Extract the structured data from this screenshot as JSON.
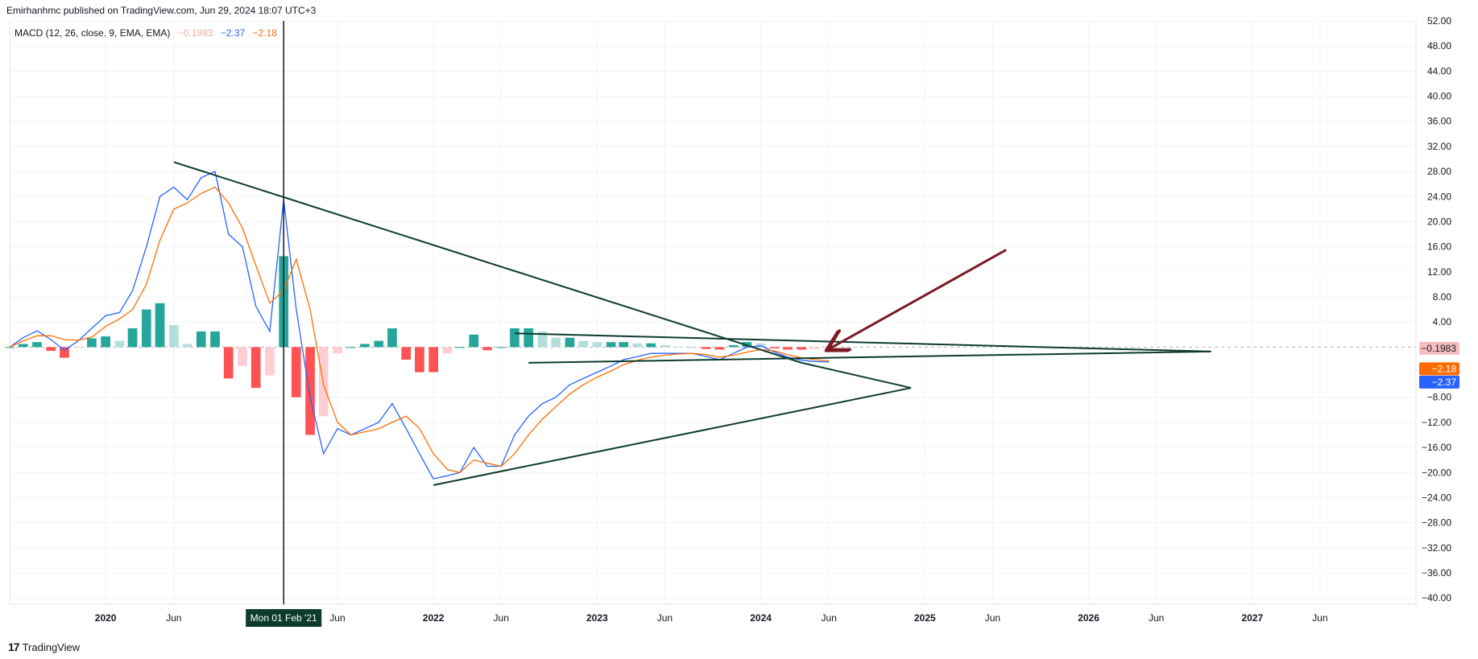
{
  "header": {
    "published": "Emirhanhmc published on TradingView.com, Jun 29, 2024 18:07 UTC+3"
  },
  "legend": {
    "indicator": "MACD (12, 26, close, 9, EMA, EMA)",
    "histogram_value": "−0.1983",
    "macd_value": "−2.37",
    "signal_value": "−2.18"
  },
  "footer": {
    "brand": "TradingView",
    "logo": "17"
  },
  "colors": {
    "macd": "#2962ff",
    "signal": "#ff6d00",
    "hist_pos_strong": "#26a69a",
    "hist_pos_weak": "#b2dfdb",
    "hist_neg_strong": "#ff5252",
    "hist_neg_weak": "#ffcdd2",
    "trendline": "#0d3b2e",
    "arrow": "#7b1a24"
  },
  "chart_data": {
    "type": "line",
    "title": "",
    "xlabel": "",
    "ylabel": "",
    "ylim": [
      -41,
      52
    ],
    "xlim": [
      "2019-06-01",
      "2028-01-01"
    ],
    "grid": true,
    "price_axis_labels": [
      "52.00",
      "48.00",
      "44.00",
      "40.00",
      "36.00",
      "32.00",
      "28.00",
      "24.00",
      "20.00",
      "16.00",
      "12.00",
      "8.00",
      "4.00",
      "−8.00",
      "−12.00",
      "−16.00",
      "−20.00",
      "−24.00",
      "−28.00",
      "−32.00",
      "−36.00",
      "−40.00"
    ],
    "price_axis_values": [
      52,
      48,
      44,
      40,
      36,
      32,
      28,
      24,
      20,
      16,
      12,
      8,
      4,
      -8,
      -12,
      -16,
      -20,
      -24,
      -28,
      -32,
      -36,
      -40
    ],
    "time_axis": [
      {
        "label": "2020",
        "date": "2020-01-01"
      },
      {
        "label": "Jun",
        "date": "2020-06-01"
      },
      {
        "label": "Jun",
        "date": "2021-06-01"
      },
      {
        "label": "2022",
        "date": "2022-01-01"
      },
      {
        "label": "Jun",
        "date": "2022-06-01"
      },
      {
        "label": "2023",
        "date": "2023-01-01"
      },
      {
        "label": "Jun",
        "date": "2023-06-01"
      },
      {
        "label": "2024",
        "date": "2024-01-01"
      },
      {
        "label": "Jun",
        "date": "2024-06-01"
      },
      {
        "label": "2025",
        "date": "2025-01-01"
      },
      {
        "label": "Jun",
        "date": "2025-06-01"
      },
      {
        "label": "2026",
        "date": "2026-01-01"
      },
      {
        "label": "Jun",
        "date": "2026-06-01"
      },
      {
        "label": "2027",
        "date": "2027-01-01"
      },
      {
        "label": "Jun",
        "date": "2027-06-01"
      }
    ],
    "crosshair": {
      "label": "Mon 01 Feb '21",
      "date": "2021-02-01"
    },
    "price_tags": [
      {
        "label": "−0.1983",
        "value": -0.1983,
        "bg": "#f7bec0",
        "fg": "#131722"
      },
      {
        "label": "−2.18",
        "value": -2.18,
        "bg": "#ff6d00",
        "fg": "#ffffff"
      },
      {
        "label": "−2.37",
        "value": -2.37,
        "bg": "#2962ff",
        "fg": "#ffffff"
      }
    ],
    "series": [
      {
        "name": "MACD",
        "color": "#2962ff",
        "points": [
          [
            "2019-06-01",
            0
          ],
          [
            "2019-07-01",
            1.5
          ],
          [
            "2019-08-01",
            2.6
          ],
          [
            "2019-09-01",
            1.2
          ],
          [
            "2019-10-01",
            -0.5
          ],
          [
            "2019-11-01",
            1
          ],
          [
            "2019-12-01",
            3
          ],
          [
            "2020-01-01",
            5
          ],
          [
            "2020-02-01",
            5.5
          ],
          [
            "2020-03-01",
            9
          ],
          [
            "2020-04-01",
            16
          ],
          [
            "2020-05-01",
            24
          ],
          [
            "2020-06-01",
            25.5
          ],
          [
            "2020-07-01",
            23.5
          ],
          [
            "2020-08-01",
            27
          ],
          [
            "2020-09-01",
            28
          ],
          [
            "2020-10-01",
            18
          ],
          [
            "2020-11-01",
            16
          ],
          [
            "2020-12-01",
            6.5
          ],
          [
            "2021-01-01",
            2.5
          ],
          [
            "2021-02-01",
            23.5
          ],
          [
            "2021-03-01",
            6
          ],
          [
            "2021-04-01",
            -8
          ],
          [
            "2021-05-01",
            -17
          ],
          [
            "2021-06-01",
            -13
          ],
          [
            "2021-07-01",
            -14
          ],
          [
            "2021-08-01",
            -13
          ],
          [
            "2021-09-01",
            -12
          ],
          [
            "2021-10-01",
            -9
          ],
          [
            "2021-11-01",
            -13
          ],
          [
            "2021-12-01",
            -17
          ],
          [
            "2022-01-01",
            -21
          ],
          [
            "2022-02-01",
            -20.5
          ],
          [
            "2022-03-01",
            -20
          ],
          [
            "2022-04-01",
            -16
          ],
          [
            "2022-05-01",
            -19
          ],
          [
            "2022-06-01",
            -19
          ],
          [
            "2022-07-01",
            -14
          ],
          [
            "2022-08-01",
            -11
          ],
          [
            "2022-09-01",
            -9
          ],
          [
            "2022-10-01",
            -8
          ],
          [
            "2022-11-01",
            -6
          ],
          [
            "2022-12-01",
            -5
          ],
          [
            "2023-01-01",
            -4
          ],
          [
            "2023-02-01",
            -3
          ],
          [
            "2023-03-01",
            -2
          ],
          [
            "2023-04-01",
            -1.5
          ],
          [
            "2023-05-01",
            -1
          ],
          [
            "2023-06-01",
            -1
          ],
          [
            "2023-07-01",
            -1
          ],
          [
            "2023-08-01",
            -1
          ],
          [
            "2023-09-01",
            -1.5
          ],
          [
            "2023-10-01",
            -2
          ],
          [
            "2023-11-01",
            -1
          ],
          [
            "2023-12-01",
            0
          ],
          [
            "2024-01-01",
            0.2
          ],
          [
            "2024-02-01",
            -0.8
          ],
          [
            "2024-03-01",
            -1.6
          ],
          [
            "2024-04-01",
            -2.1
          ],
          [
            "2024-05-01",
            -2.3
          ],
          [
            "2024-06-01",
            -2.37
          ]
        ]
      },
      {
        "name": "Signal",
        "color": "#ff6d00",
        "points": [
          [
            "2019-06-01",
            0
          ],
          [
            "2019-07-01",
            1
          ],
          [
            "2019-08-01",
            1.8
          ],
          [
            "2019-09-01",
            1.8
          ],
          [
            "2019-10-01",
            1.2
          ],
          [
            "2019-11-01",
            1.1
          ],
          [
            "2019-12-01",
            1.6
          ],
          [
            "2020-01-01",
            3.3
          ],
          [
            "2020-02-01",
            4.5
          ],
          [
            "2020-03-01",
            6
          ],
          [
            "2020-04-01",
            10
          ],
          [
            "2020-05-01",
            17
          ],
          [
            "2020-06-01",
            22
          ],
          [
            "2020-07-01",
            23
          ],
          [
            "2020-08-01",
            24.5
          ],
          [
            "2020-09-01",
            25.5
          ],
          [
            "2020-10-01",
            23
          ],
          [
            "2020-11-01",
            19
          ],
          [
            "2020-12-01",
            13
          ],
          [
            "2021-01-01",
            7
          ],
          [
            "2021-02-01",
            9
          ],
          [
            "2021-03-01",
            14
          ],
          [
            "2021-04-01",
            6
          ],
          [
            "2021-05-01",
            -6
          ],
          [
            "2021-06-01",
            -12
          ],
          [
            "2021-07-01",
            -14
          ],
          [
            "2021-08-01",
            -13.5
          ],
          [
            "2021-09-01",
            -13
          ],
          [
            "2021-10-01",
            -12
          ],
          [
            "2021-11-01",
            -11
          ],
          [
            "2021-12-01",
            -13
          ],
          [
            "2022-01-01",
            -17
          ],
          [
            "2022-02-01",
            -19.5
          ],
          [
            "2022-03-01",
            -20
          ],
          [
            "2022-04-01",
            -18
          ],
          [
            "2022-05-01",
            -18.5
          ],
          [
            "2022-06-01",
            -19
          ],
          [
            "2022-07-01",
            -17
          ],
          [
            "2022-08-01",
            -14
          ],
          [
            "2022-09-01",
            -11.5
          ],
          [
            "2022-10-01",
            -9.5
          ],
          [
            "2022-11-01",
            -7.5
          ],
          [
            "2022-12-01",
            -6
          ],
          [
            "2023-01-01",
            -4.8
          ],
          [
            "2023-02-01",
            -3.8
          ],
          [
            "2023-03-01",
            -2.8
          ],
          [
            "2023-04-01",
            -2.1
          ],
          [
            "2023-05-01",
            -1.6
          ],
          [
            "2023-06-01",
            -1.3
          ],
          [
            "2023-07-01",
            -1.1
          ],
          [
            "2023-08-01",
            -1
          ],
          [
            "2023-09-01",
            -1.2
          ],
          [
            "2023-10-01",
            -1.6
          ],
          [
            "2023-11-01",
            -1.3
          ],
          [
            "2023-12-01",
            -0.8
          ],
          [
            "2024-01-01",
            -0.4
          ],
          [
            "2024-02-01",
            -0.6
          ],
          [
            "2024-03-01",
            -1.2
          ],
          [
            "2024-04-01",
            -1.7
          ],
          [
            "2024-05-01",
            -2
          ],
          [
            "2024-06-01",
            -2.18
          ]
        ]
      },
      {
        "name": "Histogram",
        "type": "bar",
        "points": [
          [
            "2019-06-01",
            0
          ],
          [
            "2019-07-01",
            0.5
          ],
          [
            "2019-08-01",
            0.8
          ],
          [
            "2019-09-01",
            -0.6
          ],
          [
            "2019-10-01",
            -1.7
          ],
          [
            "2019-11-01",
            -0.1
          ],
          [
            "2019-12-01",
            1.4
          ],
          [
            "2020-01-01",
            1.7
          ],
          [
            "2020-02-01",
            1
          ],
          [
            "2020-03-01",
            3
          ],
          [
            "2020-04-01",
            6
          ],
          [
            "2020-05-01",
            7
          ],
          [
            "2020-06-01",
            3.5
          ],
          [
            "2020-07-01",
            0.5
          ],
          [
            "2020-08-01",
            2.5
          ],
          [
            "2020-09-01",
            2.5
          ],
          [
            "2020-10-01",
            -5
          ],
          [
            "2020-11-01",
            -3
          ],
          [
            "2020-12-01",
            -6.5
          ],
          [
            "2021-01-01",
            -4.5
          ],
          [
            "2021-02-01",
            14.5
          ],
          [
            "2021-03-01",
            -8
          ],
          [
            "2021-04-01",
            -14
          ],
          [
            "2021-05-01",
            -11
          ],
          [
            "2021-06-01",
            -1
          ],
          [
            "2021-07-01",
            0
          ],
          [
            "2021-08-01",
            0.5
          ],
          [
            "2021-09-01",
            1
          ],
          [
            "2021-10-01",
            3
          ],
          [
            "2021-11-01",
            -2
          ],
          [
            "2021-12-01",
            -4
          ],
          [
            "2022-01-01",
            -4
          ],
          [
            "2022-02-01",
            -1
          ],
          [
            "2022-03-01",
            0
          ],
          [
            "2022-04-01",
            2
          ],
          [
            "2022-05-01",
            -0.5
          ],
          [
            "2022-06-01",
            0
          ],
          [
            "2022-07-01",
            3
          ],
          [
            "2022-08-01",
            3
          ],
          [
            "2022-09-01",
            2.5
          ],
          [
            "2022-10-01",
            1.5
          ],
          [
            "2022-11-01",
            1.5
          ],
          [
            "2022-12-01",
            1
          ],
          [
            "2023-01-01",
            0.8
          ],
          [
            "2023-02-01",
            0.8
          ],
          [
            "2023-03-01",
            0.8
          ],
          [
            "2023-04-01",
            0.6
          ],
          [
            "2023-05-01",
            0.6
          ],
          [
            "2023-06-01",
            0.3
          ],
          [
            "2023-07-01",
            0.1
          ],
          [
            "2023-08-01",
            0
          ],
          [
            "2023-09-01",
            -0.3
          ],
          [
            "2023-10-01",
            -0.4
          ],
          [
            "2023-11-01",
            0.3
          ],
          [
            "2023-12-01",
            0.8
          ],
          [
            "2024-01-01",
            0.6
          ],
          [
            "2024-02-01",
            -0.2
          ],
          [
            "2024-03-01",
            -0.4
          ],
          [
            "2024-04-01",
            -0.4
          ],
          [
            "2024-05-01",
            -0.3
          ],
          [
            "2024-06-01",
            -0.1983
          ]
        ]
      }
    ],
    "drawings": [
      {
        "type": "trendline",
        "color": "#0d3b2e",
        "from": [
          "2020-06-01",
          29.5
        ],
        "to": [
          "2024-04-01",
          -2.5
        ]
      },
      {
        "type": "trendline",
        "color": "#0d3b2e",
        "from": [
          "2024-04-01",
          -2.5
        ],
        "to": [
          "2024-12-01",
          -6.5
        ]
      },
      {
        "type": "trendline",
        "color": "#0d3b2e",
        "from": [
          "2024-12-01",
          -6.5
        ],
        "to": [
          "2022-01-01",
          -22
        ]
      },
      {
        "type": "trendline",
        "color": "#0d3b2e",
        "from": [
          "2022-07-01",
          2.2
        ],
        "to": [
          "2026-10-01",
          -0.7
        ]
      },
      {
        "type": "trendline",
        "color": "#0d3b2e",
        "from": [
          "2022-08-01",
          -2.5
        ],
        "to": [
          "2026-10-01",
          -0.7
        ]
      },
      {
        "type": "arrow",
        "color": "#7b1a24",
        "from": [
          "2025-07-01",
          15.5
        ],
        "to": [
          "2024-06-01",
          -0.3
        ]
      }
    ]
  }
}
